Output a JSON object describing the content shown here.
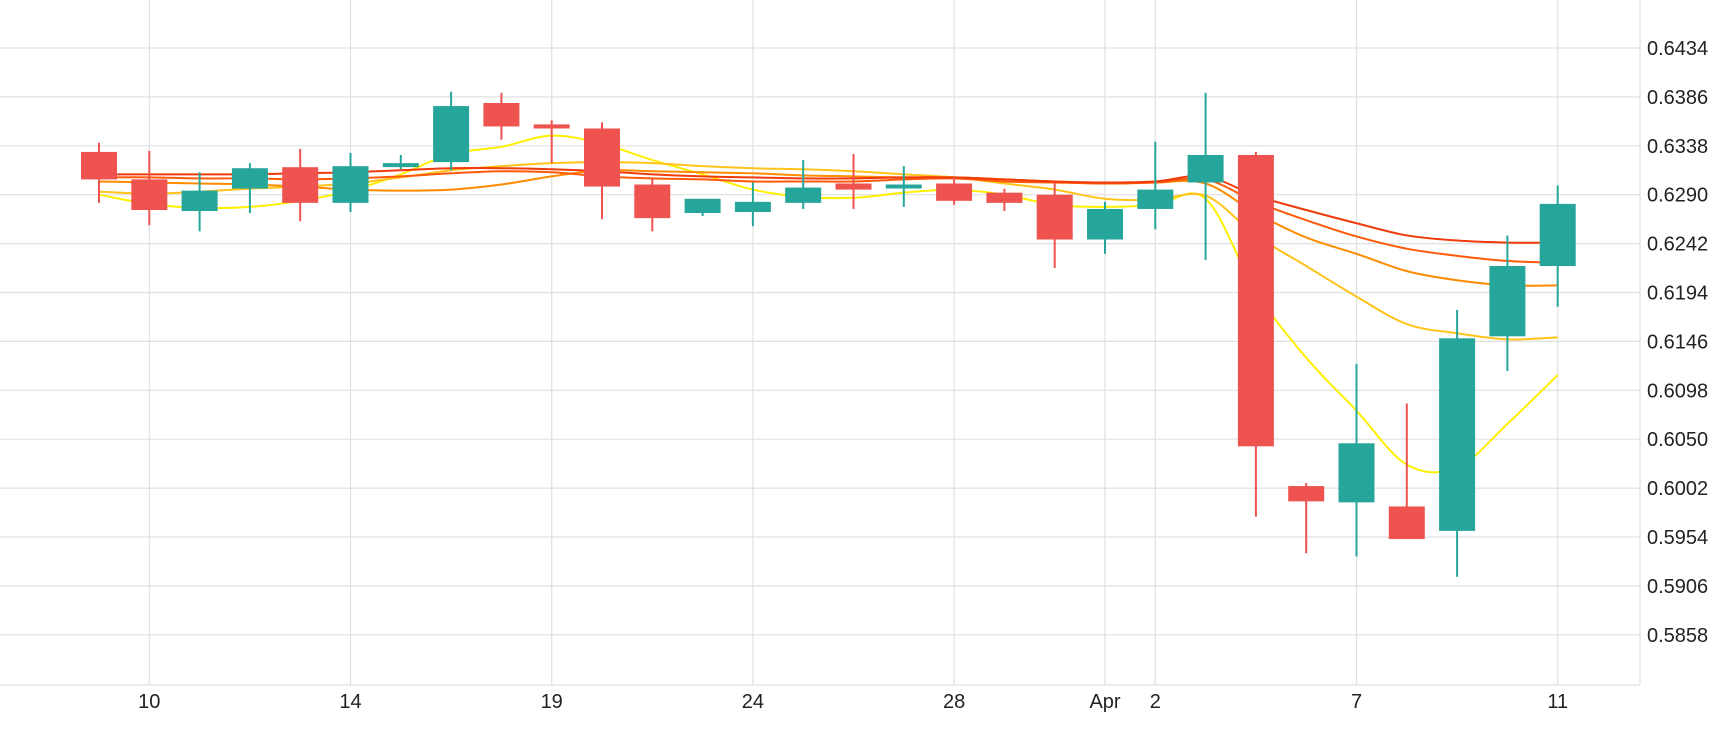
{
  "chart_data": {
    "type": "candlestick",
    "title": "",
    "xlabel": "",
    "ylabel": "",
    "ylim": [
      0.581,
      0.6482
    ],
    "grid": true,
    "y_ticks": [
      "0.6434",
      "0.6386",
      "0.6338",
      "0.6290",
      "0.6242",
      "0.6194",
      "0.6146",
      "0.6098",
      "0.6050",
      "0.6002",
      "0.5954",
      "0.5906",
      "0.5858"
    ],
    "x_ticks": [
      {
        "label": "10",
        "index": 1
      },
      {
        "label": "14",
        "index": 5
      },
      {
        "label": "19",
        "index": 9
      },
      {
        "label": "24",
        "index": 13
      },
      {
        "label": "28",
        "index": 17
      },
      {
        "label": "Apr",
        "index": 20
      },
      {
        "label": "2",
        "index": 21
      },
      {
        "label": "7",
        "index": 25
      },
      {
        "label": "11",
        "index": 29
      }
    ],
    "candles": [
      {
        "o": 0.6332,
        "h": 0.6341,
        "l": 0.6282,
        "c": 0.6305
      },
      {
        "o": 0.6305,
        "h": 0.6333,
        "l": 0.626,
        "c": 0.6275
      },
      {
        "o": 0.6274,
        "h": 0.6312,
        "l": 0.6254,
        "c": 0.6294
      },
      {
        "o": 0.6296,
        "h": 0.6321,
        "l": 0.6272,
        "c": 0.6316
      },
      {
        "o": 0.6317,
        "h": 0.6335,
        "l": 0.6264,
        "c": 0.6282
      },
      {
        "o": 0.6282,
        "h": 0.6331,
        "l": 0.6273,
        "c": 0.6318
      },
      {
        "o": 0.6318,
        "h": 0.6329,
        "l": 0.6315,
        "c": 0.6321
      },
      {
        "o": 0.6322,
        "h": 0.6391,
        "l": 0.6314,
        "c": 0.6377
      },
      {
        "o": 0.638,
        "h": 0.639,
        "l": 0.6344,
        "c": 0.6357
      },
      {
        "o": 0.6359,
        "h": 0.6363,
        "l": 0.6321,
        "c": 0.6355
      },
      {
        "o": 0.6355,
        "h": 0.6361,
        "l": 0.6266,
        "c": 0.6298
      },
      {
        "o": 0.63,
        "h": 0.6306,
        "l": 0.6254,
        "c": 0.6267
      },
      {
        "o": 0.6272,
        "h": 0.6285,
        "l": 0.6269,
        "c": 0.6286
      },
      {
        "o": 0.6273,
        "h": 0.6302,
        "l": 0.6259,
        "c": 0.6283
      },
      {
        "o": 0.6282,
        "h": 0.6324,
        "l": 0.6276,
        "c": 0.6297
      },
      {
        "o": 0.6301,
        "h": 0.633,
        "l": 0.6276,
        "c": 0.6295
      },
      {
        "o": 0.6298,
        "h": 0.6318,
        "l": 0.6278,
        "c": 0.63
      },
      {
        "o": 0.6301,
        "h": 0.6307,
        "l": 0.628,
        "c": 0.6284
      },
      {
        "o": 0.6292,
        "h": 0.6296,
        "l": 0.6274,
        "c": 0.6282
      },
      {
        "o": 0.629,
        "h": 0.6302,
        "l": 0.6218,
        "c": 0.6246
      },
      {
        "o": 0.6246,
        "h": 0.6283,
        "l": 0.6232,
        "c": 0.6276
      },
      {
        "o": 0.6276,
        "h": 0.6342,
        "l": 0.6256,
        "c": 0.6295
      },
      {
        "o": 0.6302,
        "h": 0.639,
        "l": 0.6226,
        "c": 0.6329
      },
      {
        "o": 0.6329,
        "h": 0.6332,
        "l": 0.5974,
        "c": 0.6043
      },
      {
        "o": 0.6004,
        "h": 0.6007,
        "l": 0.5938,
        "c": 0.5989
      },
      {
        "o": 0.5988,
        "h": 0.6124,
        "l": 0.5935,
        "c": 0.6046
      },
      {
        "o": 0.5984,
        "h": 0.6085,
        "l": 0.5952,
        "c": 0.5952
      },
      {
        "o": 0.596,
        "h": 0.6177,
        "l": 0.5915,
        "c": 0.6149
      },
      {
        "o": 0.6151,
        "h": 0.625,
        "l": 0.6117,
        "c": 0.622
      },
      {
        "o": 0.622,
        "h": 0.6299,
        "l": 0.618,
        "c": 0.6281
      }
    ],
    "moving_averages": [
      {
        "color": "#ffef00",
        "values": [
          0.629,
          0.6281,
          0.6277,
          0.6278,
          0.6284,
          0.6294,
          0.631,
          0.633,
          0.6337,
          0.6348,
          0.634,
          0.6324,
          0.631,
          0.6295,
          0.6288,
          0.6287,
          0.6292,
          0.6295,
          0.629,
          0.628,
          0.6278,
          0.628,
          0.6286,
          0.6195,
          0.613,
          0.6078,
          0.6025,
          0.6022,
          0.6065,
          0.6113
        ]
      },
      {
        "color": "#ffc31a",
        "values": [
          0.6293,
          0.6291,
          0.6293,
          0.6296,
          0.6298,
          0.6301,
          0.6307,
          0.6314,
          0.6318,
          0.6321,
          0.6322,
          0.6321,
          0.6318,
          0.6316,
          0.6315,
          0.6313,
          0.631,
          0.6307,
          0.6301,
          0.6295,
          0.6286,
          0.6285,
          0.6289,
          0.625,
          0.622,
          0.619,
          0.6163,
          0.6154,
          0.6148,
          0.615
        ]
      },
      {
        "color": "#ff8c00",
        "values": [
          0.6303,
          0.6302,
          0.6301,
          0.63,
          0.6298,
          0.6295,
          0.6294,
          0.6295,
          0.63,
          0.6308,
          0.6314,
          0.6313,
          0.6312,
          0.6311,
          0.6309,
          0.6308,
          0.6307,
          0.6307,
          0.6305,
          0.6303,
          0.6301,
          0.6302,
          0.6301,
          0.6272,
          0.6248,
          0.6232,
          0.6215,
          0.6206,
          0.6201,
          0.6201
        ]
      },
      {
        "color": "#ff5a0a",
        "values": [
          0.6307,
          0.6307,
          0.6306,
          0.6306,
          0.6305,
          0.6306,
          0.6308,
          0.6311,
          0.6313,
          0.6312,
          0.6308,
          0.6306,
          0.6305,
          0.6303,
          0.6303,
          0.6303,
          0.6305,
          0.6306,
          0.6303,
          0.6302,
          0.6301,
          0.6302,
          0.6305,
          0.6283,
          0.6265,
          0.6249,
          0.6237,
          0.623,
          0.6225,
          0.6223
        ]
      },
      {
        "color": "#f03a0a",
        "values": [
          0.631,
          0.631,
          0.631,
          0.631,
          0.6311,
          0.6312,
          0.6314,
          0.6316,
          0.6316,
          0.6315,
          0.6313,
          0.631,
          0.6308,
          0.6307,
          0.6306,
          0.6306,
          0.6307,
          0.6307,
          0.6305,
          0.6303,
          0.6302,
          0.6303,
          0.6308,
          0.6289,
          0.6275,
          0.6262,
          0.625,
          0.6245,
          0.6243,
          0.6243
        ]
      }
    ],
    "colors": {
      "up": "#26a69a",
      "down": "#ef5350",
      "grid": "#e0e0e0",
      "axis_text": "#222222"
    }
  }
}
